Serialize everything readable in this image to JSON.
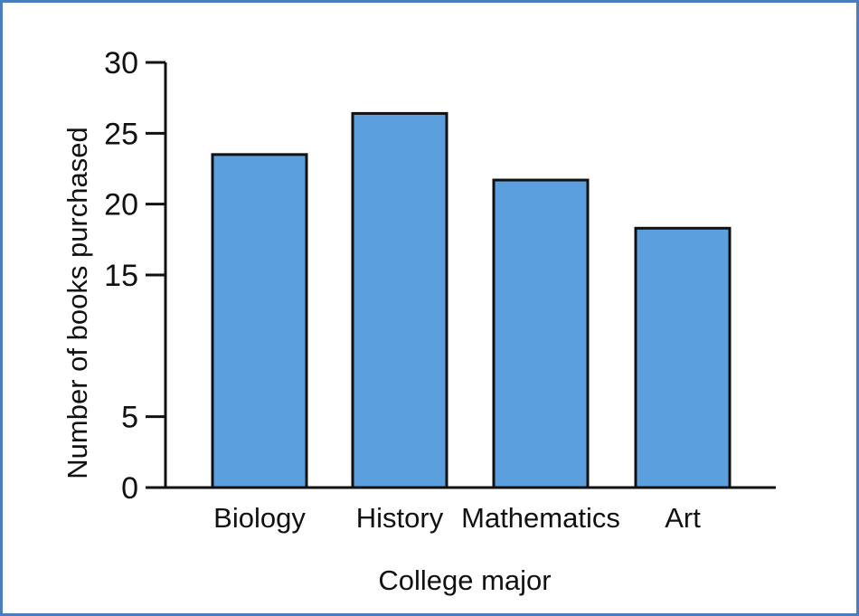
{
  "chart_data": {
    "type": "bar",
    "categories": [
      "Biology",
      "History",
      "Mathematics",
      "Art"
    ],
    "values": [
      23.5,
      26.4,
      21.7,
      18.3
    ],
    "title": "",
    "xlabel": "College major",
    "ylabel": "Number of books purchased",
    "yticks": [
      "0",
      "5",
      "15",
      "20",
      "25",
      "30"
    ],
    "ylim": [
      0,
      30
    ],
    "grid": false,
    "bar_color": "#5b9fdf",
    "bar_edge_color": "#111111",
    "frame_color": "#4a7dbf"
  }
}
